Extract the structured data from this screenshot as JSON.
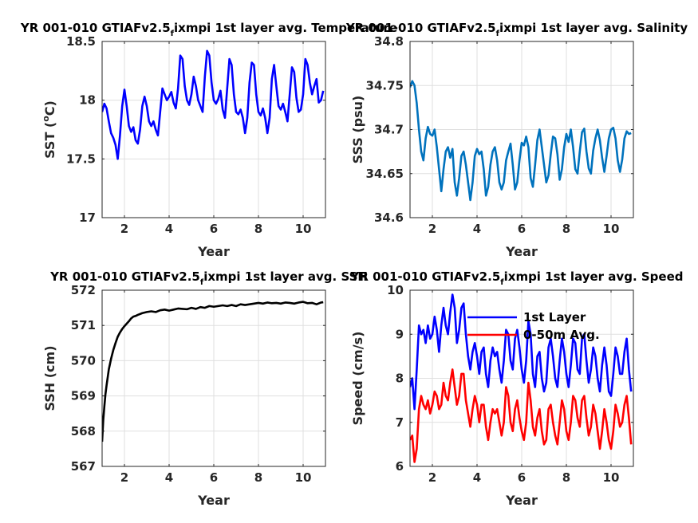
{
  "chart_data": [
    {
      "type": "line",
      "title": "YR 001-010 GTIAFv2.5",
      "title_subscript": "f",
      "title_suffix": "ixmpi 1st layer avg. Temperature",
      "xlabel": "Year",
      "ylabel": "SST (°C)",
      "ylabel_parts": {
        "pre": "SST (",
        "sup": "o",
        "post": "C)"
      },
      "xlim": [
        1,
        11
      ],
      "ylim": [
        17,
        18.5
      ],
      "xticks": [
        2,
        4,
        6,
        8,
        10
      ],
      "yticks": [
        17,
        17.5,
        18,
        18.5
      ],
      "ytick_labels": [
        "17",
        "17.5",
        "18",
        "18.5"
      ],
      "grid": true,
      "series": [
        {
          "color": "#0000ff",
          "x": [
            1,
            1.1,
            1.2,
            1.3,
            1.4,
            1.5,
            1.6,
            1.7,
            1.8,
            1.9,
            2,
            2.1,
            2.2,
            2.3,
            2.4,
            2.5,
            2.6,
            2.7,
            2.8,
            2.9,
            3,
            3.1,
            3.2,
            3.3,
            3.4,
            3.5,
            3.6,
            3.7,
            3.8,
            3.9,
            4,
            4.1,
            4.2,
            4.3,
            4.4,
            4.5,
            4.6,
            4.7,
            4.8,
            4.9,
            5,
            5.1,
            5.2,
            5.3,
            5.4,
            5.5,
            5.6,
            5.7,
            5.8,
            5.9,
            6,
            6.1,
            6.2,
            6.3,
            6.4,
            6.5,
            6.6,
            6.7,
            6.8,
            6.9,
            7,
            7.1,
            7.2,
            7.3,
            7.4,
            7.5,
            7.6,
            7.7,
            7.8,
            7.9,
            8,
            8.1,
            8.2,
            8.3,
            8.4,
            8.5,
            8.6,
            8.7,
            8.8,
            8.9,
            9,
            9.1,
            9.2,
            9.3,
            9.4,
            9.5,
            9.6,
            9.7,
            9.8,
            9.9,
            10,
            10.1,
            10.2,
            10.3,
            10.4,
            10.5,
            10.6,
            10.7,
            10.8,
            10.9
          ],
          "y": [
            17.9,
            17.97,
            17.93,
            17.82,
            17.72,
            17.68,
            17.62,
            17.5,
            17.7,
            17.95,
            18.09,
            17.95,
            17.78,
            17.73,
            17.77,
            17.66,
            17.63,
            17.75,
            17.95,
            18.03,
            17.95,
            17.82,
            17.78,
            17.82,
            17.75,
            17.7,
            17.9,
            18.1,
            18.05,
            18.0,
            18.03,
            18.07,
            17.98,
            17.93,
            18.1,
            18.38,
            18.35,
            18.12,
            18.0,
            17.96,
            18.05,
            18.2,
            18.12,
            18.0,
            17.95,
            17.9,
            18.2,
            18.42,
            18.38,
            18.15,
            18.0,
            17.97,
            18.01,
            18.08,
            17.92,
            17.85,
            18.1,
            18.35,
            18.3,
            18.05,
            17.9,
            17.88,
            17.92,
            17.85,
            17.72,
            17.85,
            18.15,
            18.32,
            18.3,
            18.05,
            17.9,
            17.87,
            17.93,
            17.85,
            17.72,
            17.85,
            18.18,
            18.3,
            18.12,
            17.95,
            17.92,
            17.97,
            17.9,
            17.82,
            18.05,
            18.28,
            18.24,
            18.02,
            17.9,
            17.92,
            18.05,
            18.35,
            18.3,
            18.15,
            18.05,
            18.12,
            18.18,
            17.98,
            18.0,
            18.08
          ]
        }
      ]
    },
    {
      "type": "line",
      "title": "YR 001-010 GTIAFv2.5",
      "title_subscript": "f",
      "title_suffix": "ixmpi 1st layer avg. Salinity",
      "xlabel": "Year",
      "ylabel": "SSS (psu)",
      "xlim": [
        1,
        11
      ],
      "ylim": [
        34.6,
        34.8
      ],
      "xticks": [
        2,
        4,
        6,
        8,
        10
      ],
      "yticks": [
        34.6,
        34.65,
        34.7,
        34.75,
        34.8
      ],
      "ytick_labels": [
        "34.6",
        "34.65",
        "34.7",
        "34.75",
        "34.8"
      ],
      "grid": true,
      "series": [
        {
          "color": "#0072bd",
          "x": [
            1,
            1.1,
            1.2,
            1.3,
            1.4,
            1.5,
            1.6,
            1.7,
            1.8,
            1.9,
            2,
            2.1,
            2.2,
            2.3,
            2.4,
            2.5,
            2.6,
            2.7,
            2.8,
            2.9,
            3,
            3.1,
            3.2,
            3.3,
            3.4,
            3.5,
            3.6,
            3.7,
            3.8,
            3.9,
            4,
            4.1,
            4.2,
            4.3,
            4.4,
            4.5,
            4.6,
            4.7,
            4.8,
            4.9,
            5,
            5.1,
            5.2,
            5.3,
            5.4,
            5.5,
            5.6,
            5.7,
            5.8,
            5.9,
            6,
            6.1,
            6.2,
            6.3,
            6.4,
            6.5,
            6.6,
            6.7,
            6.8,
            6.9,
            7,
            7.1,
            7.2,
            7.3,
            7.4,
            7.5,
            7.6,
            7.7,
            7.8,
            7.9,
            8,
            8.1,
            8.2,
            8.3,
            8.4,
            8.5,
            8.6,
            8.7,
            8.8,
            8.9,
            9,
            9.1,
            9.2,
            9.3,
            9.4,
            9.5,
            9.6,
            9.7,
            9.8,
            9.9,
            10,
            10.1,
            10.2,
            10.3,
            10.4,
            10.5,
            10.6,
            10.7,
            10.8,
            10.9
          ],
          "y": [
            34.748,
            34.755,
            34.75,
            34.73,
            34.7,
            34.675,
            34.665,
            34.69,
            34.703,
            34.695,
            34.693,
            34.7,
            34.68,
            34.655,
            34.63,
            34.655,
            34.675,
            34.68,
            34.668,
            34.678,
            34.64,
            34.625,
            34.645,
            34.67,
            34.675,
            34.66,
            34.64,
            34.62,
            34.64,
            34.67,
            34.678,
            34.672,
            34.675,
            34.655,
            34.625,
            34.635,
            34.66,
            34.675,
            34.68,
            34.665,
            34.64,
            34.632,
            34.64,
            34.665,
            34.675,
            34.684,
            34.66,
            34.632,
            34.64,
            34.665,
            34.685,
            34.682,
            34.692,
            34.68,
            34.645,
            34.635,
            34.66,
            34.688,
            34.7,
            34.68,
            34.66,
            34.64,
            34.648,
            34.672,
            34.692,
            34.69,
            34.672,
            34.643,
            34.655,
            34.68,
            34.695,
            34.686,
            34.7,
            34.68,
            34.655,
            34.65,
            34.675,
            34.697,
            34.701,
            34.675,
            34.656,
            34.65,
            34.676,
            34.69,
            34.7,
            34.688,
            34.668,
            34.652,
            34.67,
            34.69,
            34.7,
            34.702,
            34.69,
            34.665,
            34.652,
            34.666,
            34.69,
            34.698,
            34.695,
            34.696
          ]
        }
      ]
    },
    {
      "type": "line",
      "title": "YR 001-010 GTIAFv2.5",
      "title_subscript": "f",
      "title_suffix": "ixmpi 1st layer avg. SSH",
      "xlabel": "Year",
      "ylabel": "SSH (cm)",
      "xlim": [
        1,
        11
      ],
      "ylim": [
        567,
        572
      ],
      "xticks": [
        2,
        4,
        6,
        8,
        10
      ],
      "yticks": [
        567,
        568,
        569,
        570,
        571,
        572
      ],
      "ytick_labels": [
        "567",
        "568",
        "569",
        "570",
        "571",
        "572"
      ],
      "grid": true,
      "series": [
        {
          "color": "#000000",
          "x": [
            1.0,
            1.05,
            1.1,
            1.15,
            1.2,
            1.3,
            1.4,
            1.5,
            1.6,
            1.7,
            1.8,
            1.9,
            2.0,
            2.1,
            2.2,
            2.3,
            2.4,
            2.5,
            2.6,
            2.8,
            3.0,
            3.2,
            3.4,
            3.6,
            3.8,
            4.0,
            4.2,
            4.4,
            4.6,
            4.8,
            5.0,
            5.2,
            5.4,
            5.6,
            5.8,
            6.0,
            6.2,
            6.4,
            6.6,
            6.8,
            7.0,
            7.2,
            7.4,
            7.6,
            7.8,
            8.0,
            8.2,
            8.4,
            8.6,
            8.8,
            9.0,
            9.2,
            9.4,
            9.6,
            9.8,
            10.0,
            10.2,
            10.4,
            10.6,
            10.8,
            10.9
          ],
          "y": [
            567.7,
            568.3,
            568.7,
            569.05,
            569.3,
            569.75,
            570.05,
            570.3,
            570.5,
            570.68,
            570.8,
            570.9,
            570.98,
            571.05,
            571.12,
            571.2,
            571.25,
            571.27,
            571.3,
            571.35,
            571.38,
            571.4,
            571.38,
            571.43,
            571.45,
            571.42,
            571.45,
            571.48,
            571.47,
            571.46,
            571.5,
            571.47,
            571.52,
            571.5,
            571.55,
            571.53,
            571.55,
            571.57,
            571.55,
            571.58,
            571.55,
            571.6,
            571.58,
            571.6,
            571.62,
            571.64,
            571.62,
            571.65,
            571.63,
            571.64,
            571.62,
            571.65,
            571.64,
            571.62,
            571.65,
            571.67,
            571.63,
            571.64,
            571.6,
            571.65,
            571.66
          ]
        }
      ]
    },
    {
      "type": "line",
      "title": "YR 001-010 GTIAFv2.5",
      "title_subscript": "f",
      "title_suffix": "ixmpi 1st layer avg. Speed",
      "xlabel": "Year",
      "ylabel": "Speed (cm/s)",
      "xlim": [
        1,
        11
      ],
      "ylim": [
        6,
        10
      ],
      "xticks": [
        2,
        4,
        6,
        8,
        10
      ],
      "yticks": [
        6,
        7,
        8,
        9,
        10
      ],
      "ytick_labels": [
        "6",
        "7",
        "8",
        "9",
        "10"
      ],
      "grid": true,
      "legend": "top-center",
      "series": [
        {
          "name": "1st Layer",
          "color": "#0000ff",
          "x": [
            1,
            1.1,
            1.2,
            1.3,
            1.4,
            1.5,
            1.6,
            1.7,
            1.8,
            1.9,
            2,
            2.1,
            2.2,
            2.3,
            2.4,
            2.5,
            2.6,
            2.7,
            2.8,
            2.9,
            3,
            3.1,
            3.2,
            3.3,
            3.4,
            3.5,
            3.6,
            3.7,
            3.8,
            3.9,
            4,
            4.1,
            4.2,
            4.3,
            4.4,
            4.5,
            4.6,
            4.7,
            4.8,
            4.9,
            5,
            5.1,
            5.2,
            5.3,
            5.4,
            5.5,
            5.6,
            5.7,
            5.8,
            5.9,
            6,
            6.1,
            6.2,
            6.3,
            6.4,
            6.5,
            6.6,
            6.7,
            6.8,
            6.9,
            7,
            7.1,
            7.2,
            7.3,
            7.4,
            7.5,
            7.6,
            7.7,
            7.8,
            7.9,
            8,
            8.1,
            8.2,
            8.3,
            8.4,
            8.5,
            8.6,
            8.7,
            8.8,
            8.9,
            9,
            9.1,
            9.2,
            9.3,
            9.4,
            9.5,
            9.6,
            9.7,
            9.8,
            9.9,
            10,
            10.1,
            10.2,
            10.3,
            10.4,
            10.5,
            10.6,
            10.7,
            10.8,
            10.9
          ],
          "y": [
            7.8,
            8.0,
            7.3,
            8.2,
            9.2,
            9.0,
            9.1,
            8.8,
            9.2,
            8.9,
            9.0,
            9.4,
            9.1,
            8.6,
            9.2,
            9.6,
            9.2,
            9.0,
            9.5,
            9.9,
            9.6,
            8.8,
            9.1,
            9.6,
            9.7,
            9.0,
            8.5,
            8.2,
            8.6,
            8.8,
            8.5,
            8.1,
            8.6,
            8.7,
            8.1,
            7.8,
            8.4,
            8.7,
            8.5,
            8.6,
            8.2,
            7.9,
            8.4,
            9.1,
            9.0,
            8.4,
            8.2,
            8.9,
            9.1,
            8.7,
            8.2,
            7.9,
            8.4,
            9.3,
            9.0,
            8.1,
            7.8,
            8.5,
            8.6,
            8.0,
            7.7,
            7.9,
            8.7,
            8.9,
            8.5,
            8.0,
            7.8,
            8.4,
            8.9,
            8.6,
            8.1,
            7.8,
            8.3,
            8.9,
            8.8,
            8.2,
            8.1,
            8.9,
            9.0,
            8.4,
            7.9,
            8.2,
            8.7,
            8.5,
            8.0,
            7.7,
            8.3,
            8.7,
            8.3,
            7.7,
            7.6,
            8.1,
            8.7,
            8.5,
            8.1,
            8.1,
            8.6,
            8.9,
            8.2,
            7.7
          ]
        },
        {
          "name": "0-50m Avg.",
          "color": "#ff0000",
          "x": [
            1,
            1.1,
            1.2,
            1.3,
            1.4,
            1.5,
            1.6,
            1.7,
            1.8,
            1.9,
            2,
            2.1,
            2.2,
            2.3,
            2.4,
            2.5,
            2.6,
            2.7,
            2.8,
            2.9,
            3,
            3.1,
            3.2,
            3.3,
            3.4,
            3.5,
            3.6,
            3.7,
            3.8,
            3.9,
            4,
            4.1,
            4.2,
            4.3,
            4.4,
            4.5,
            4.6,
            4.7,
            4.8,
            4.9,
            5,
            5.1,
            5.2,
            5.3,
            5.4,
            5.5,
            5.6,
            5.7,
            5.8,
            5.9,
            6,
            6.1,
            6.2,
            6.3,
            6.4,
            6.5,
            6.6,
            6.7,
            6.8,
            6.9,
            7,
            7.1,
            7.2,
            7.3,
            7.4,
            7.5,
            7.6,
            7.7,
            7.8,
            7.9,
            8,
            8.1,
            8.2,
            8.3,
            8.4,
            8.5,
            8.6,
            8.7,
            8.8,
            8.9,
            9,
            9.1,
            9.2,
            9.3,
            9.4,
            9.5,
            9.6,
            9.7,
            9.8,
            9.9,
            10,
            10.1,
            10.2,
            10.3,
            10.4,
            10.5,
            10.6,
            10.7,
            10.8,
            10.9
          ],
          "y": [
            6.6,
            6.7,
            6.1,
            6.4,
            7.3,
            7.6,
            7.4,
            7.3,
            7.5,
            7.2,
            7.4,
            7.7,
            7.6,
            7.3,
            7.4,
            7.9,
            7.6,
            7.5,
            7.9,
            8.2,
            7.8,
            7.4,
            7.6,
            8.1,
            8.1,
            7.5,
            7.2,
            6.9,
            7.3,
            7.6,
            7.4,
            7.0,
            7.4,
            7.4,
            6.9,
            6.6,
            7.0,
            7.3,
            7.2,
            7.3,
            7.0,
            6.7,
            7.0,
            7.8,
            7.6,
            7.0,
            6.8,
            7.3,
            7.5,
            7.1,
            6.8,
            6.6,
            7.0,
            7.9,
            7.5,
            6.9,
            6.7,
            7.1,
            7.3,
            6.8,
            6.5,
            6.6,
            7.3,
            7.4,
            7.0,
            6.7,
            6.5,
            7.0,
            7.5,
            7.3,
            6.8,
            6.6,
            7.0,
            7.6,
            7.5,
            7.1,
            6.9,
            7.5,
            7.6,
            7.1,
            6.7,
            6.9,
            7.4,
            7.2,
            6.8,
            6.4,
            6.8,
            7.3,
            7.0,
            6.6,
            6.4,
            6.8,
            7.4,
            7.2,
            6.9,
            7.0,
            7.4,
            7.6,
            7.1,
            6.5
          ]
        }
      ]
    }
  ]
}
